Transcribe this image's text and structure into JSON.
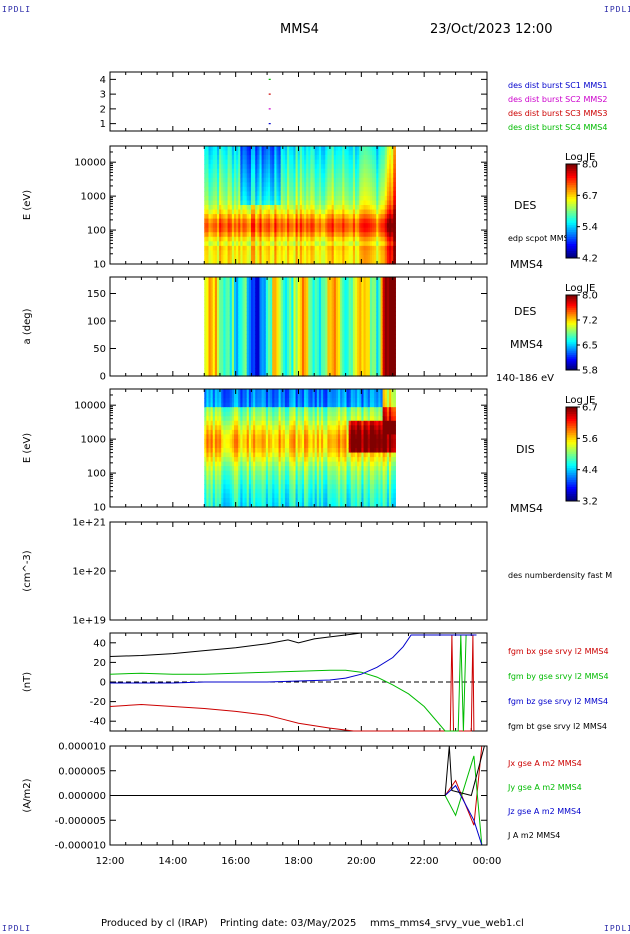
{
  "header": {
    "corner_label": "IPDLI",
    "spacecraft": "MMS4",
    "datetime": "23/Oct/2023 12:00"
  },
  "footer": {
    "produced_by": "Produced by cl (IRAP)",
    "printing_date": "Printing date: 03/May/2025",
    "filename": "mms_mms4_srvy_vue_web1.cl"
  },
  "chart_data": [
    {
      "id": "burst",
      "type": "scatter",
      "ylim": [
        0.5,
        4.5
      ],
      "yticks": [
        "1",
        "2",
        "3",
        "4"
      ],
      "series": [
        {
          "name": "des dist burst SC1 MMS1",
          "color": "#0000cc",
          "y": 1,
          "t": [
            "17:05"
          ]
        },
        {
          "name": "des dist burst SC2 MMS2",
          "color": "#cc00cc",
          "y": 2,
          "t": [
            "17:05"
          ]
        },
        {
          "name": "des dist burst SC3 MMS3",
          "color": "#cc0000",
          "y": 3,
          "t": [
            "17:05"
          ]
        },
        {
          "name": "des dist burst SC4 MMS4",
          "color": "#00bb00",
          "y": 4,
          "t": [
            "17:05"
          ]
        }
      ]
    },
    {
      "id": "des_energy",
      "type": "heatmap",
      "ylabel": "E (eV)",
      "yscale": "log",
      "ylim": [
        10,
        30000
      ],
      "yticks": [
        "10",
        "100",
        "1000",
        "10000"
      ],
      "data_time_range": [
        "15:00",
        "21:05"
      ],
      "right_labels": [
        "DES",
        "edp scpot MMS4",
        "MMS4"
      ],
      "colorbar": {
        "label": "Log JE",
        "ticks": [
          "8.0",
          "6.7",
          "5.4",
          "4.2"
        ],
        "range": [
          4.2,
          8.0
        ]
      }
    },
    {
      "id": "des_pitch",
      "type": "heatmap",
      "ylabel": "a (deg)",
      "ylim": [
        0,
        180
      ],
      "yticks": [
        "0",
        "50",
        "100",
        "150"
      ],
      "data_time_range": [
        "15:00",
        "21:05"
      ],
      "right_labels": [
        "DES",
        "MMS4",
        "140-186 eV"
      ],
      "colorbar": {
        "label": "Log JE",
        "ticks": [
          "8.0",
          "7.2",
          "6.5",
          "5.8"
        ],
        "range": [
          5.8,
          8.0
        ]
      }
    },
    {
      "id": "dis_energy",
      "type": "heatmap",
      "ylabel": "E (eV)",
      "yscale": "log",
      "ylim": [
        10,
        30000
      ],
      "yticks": [
        "10",
        "100",
        "1000",
        "10000"
      ],
      "data_time_range": [
        "15:00",
        "21:05"
      ],
      "right_labels": [
        "DIS",
        "MMS4"
      ],
      "colorbar": {
        "label": "Log JE",
        "ticks": [
          "6.7",
          "5.6",
          "4.4",
          "3.2"
        ],
        "range": [
          3.2,
          6.7
        ]
      }
    },
    {
      "id": "density",
      "type": "line",
      "ylabel": "(cm^-3)",
      "yscale": "log",
      "yticks": [
        "1e+19",
        "1e+20",
        "1e+21"
      ],
      "series": [
        {
          "name": "des numberdensity fast M",
          "color": "#000000",
          "x": [],
          "y": []
        }
      ]
    },
    {
      "id": "fgm",
      "type": "line",
      "ylabel": "(nT)",
      "ylim": [
        -50,
        50
      ],
      "yticks": [
        "-40",
        "-20",
        "0",
        "20",
        "40"
      ],
      "series": [
        {
          "name": "fgm bx gse srvy l2 MMS4",
          "color": "#cc0000",
          "x": [
            "12:00",
            "13:00",
            "14:00",
            "15:00",
            "16:00",
            "17:00",
            "17:30",
            "18:00",
            "19:00",
            "19:45",
            "22:50",
            "22:53",
            "22:56",
            "23:30",
            "23:33",
            "23:35"
          ],
          "y": [
            -25,
            -23,
            -25,
            -27,
            -30,
            -34,
            -38,
            -42,
            -47,
            -50,
            -50,
            48,
            -50,
            -50,
            48,
            -50
          ]
        },
        {
          "name": "fgm by gse srvy l2 MMS4",
          "color": "#00bb00",
          "x": [
            "12:00",
            "13:00",
            "14:00",
            "15:00",
            "16:00",
            "17:00",
            "18:00",
            "19:00",
            "19:30",
            "20:00",
            "20:30",
            "21:00",
            "21:30",
            "22:00",
            "22:40",
            "23:05",
            "23:10",
            "23:15",
            "23:20"
          ],
          "y": [
            8,
            9,
            8,
            8,
            9,
            10,
            11,
            12,
            12,
            10,
            5,
            -3,
            -12,
            -25,
            -50,
            -50,
            48,
            -50,
            48
          ]
        },
        {
          "name": "fgm bz gse srvy l2 MMS4",
          "color": "#0000cc",
          "x": [
            "12:00",
            "13:00",
            "14:00",
            "15:00",
            "16:00",
            "17:00",
            "18:00",
            "19:00",
            "19:30",
            "20:00",
            "20:30",
            "21:00",
            "21:20",
            "21:35",
            "23:40"
          ],
          "y": [
            -1,
            -1,
            -1,
            0,
            0,
            0,
            1,
            2,
            4,
            8,
            15,
            25,
            36,
            48,
            48
          ]
        },
        {
          "name": "fgm bt gse srvy l2 MMS4",
          "color": "#000000",
          "x": [
            "12:00",
            "13:00",
            "14:00",
            "15:00",
            "16:00",
            "17:00",
            "17:40",
            "18:00",
            "18:30",
            "19:00",
            "19:30",
            "20:00",
            "20:45"
          ],
          "y": [
            26,
            27,
            29,
            32,
            35,
            39,
            43,
            40,
            44,
            46,
            48,
            50,
            50
          ]
        }
      ]
    },
    {
      "id": "current",
      "type": "line",
      "ylabel": "(A/m2)",
      "ylim": [
        -1e-05,
        1e-05
      ],
      "yticks": [
        "0.000010",
        "0.000005",
        "0.000000",
        "-0.000005",
        "-0.000010"
      ],
      "xticks": [
        "12:00",
        "14:00",
        "16:00",
        "18:00",
        "20:00",
        "22:00",
        "00:00"
      ],
      "series": [
        {
          "name": "Jx gse A m2 MMS4",
          "color": "#cc0000",
          "x": [
            "12:00",
            "22:40",
            "23:00",
            "23:35",
            "23:50"
          ],
          "y": [
            0,
            0,
            3e-06,
            -6e-06,
            1e-05
          ]
        },
        {
          "name": "Jy gse A m2 MMS4",
          "color": "#00bb00",
          "x": [
            "12:00",
            "22:40",
            "23:00",
            "23:35",
            "23:50"
          ],
          "y": [
            0,
            0,
            -4e-06,
            8e-06,
            -1e-05
          ]
        },
        {
          "name": "Jz gse A m2 MMS4",
          "color": "#0000cc",
          "x": [
            "12:00",
            "22:40",
            "23:00",
            "23:35",
            "23:50"
          ],
          "y": [
            0,
            0,
            2e-06,
            -5e-06,
            -1e-05
          ]
        },
        {
          "name": "J A m2 MMS4",
          "color": "#000000",
          "x": [
            "12:00",
            "22:40",
            "22:48",
            "22:53",
            "23:30",
            "23:55"
          ],
          "y": [
            0,
            0,
            1e-05,
            1e-06,
            0,
            1e-05
          ]
        }
      ]
    }
  ]
}
